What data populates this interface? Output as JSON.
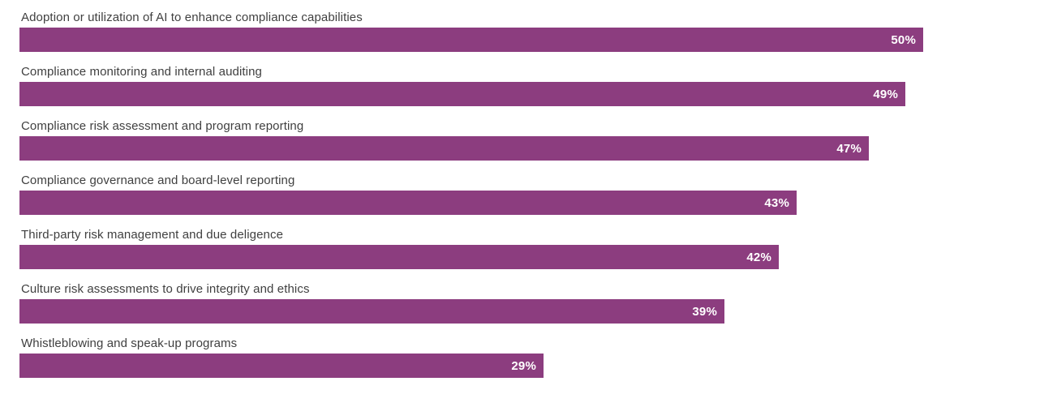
{
  "chart_data": {
    "type": "bar",
    "orientation": "horizontal",
    "title": "",
    "xlabel": "",
    "ylabel": "",
    "xlim": [
      0,
      50
    ],
    "grid": false,
    "legend": false,
    "bar_color": "#8C3D7F",
    "value_label_color": "#FFFFFF",
    "category_label_color": "#404040",
    "categories": [
      "Adoption or utilization of AI to enhance compliance capabilities",
      "Compliance monitoring and internal auditing",
      "Compliance risk assessment and program reporting",
      "Compliance governance and board-level reporting",
      "Third-party risk management and due deligence",
      "Culture risk assessments to drive integrity and ethics",
      "Whistleblowing and speak-up programs"
    ],
    "values": [
      50,
      49,
      47,
      43,
      42,
      39,
      29
    ],
    "value_labels": [
      "50%",
      "49%",
      "47%",
      "43%",
      "42%",
      "39%",
      "29%"
    ]
  }
}
